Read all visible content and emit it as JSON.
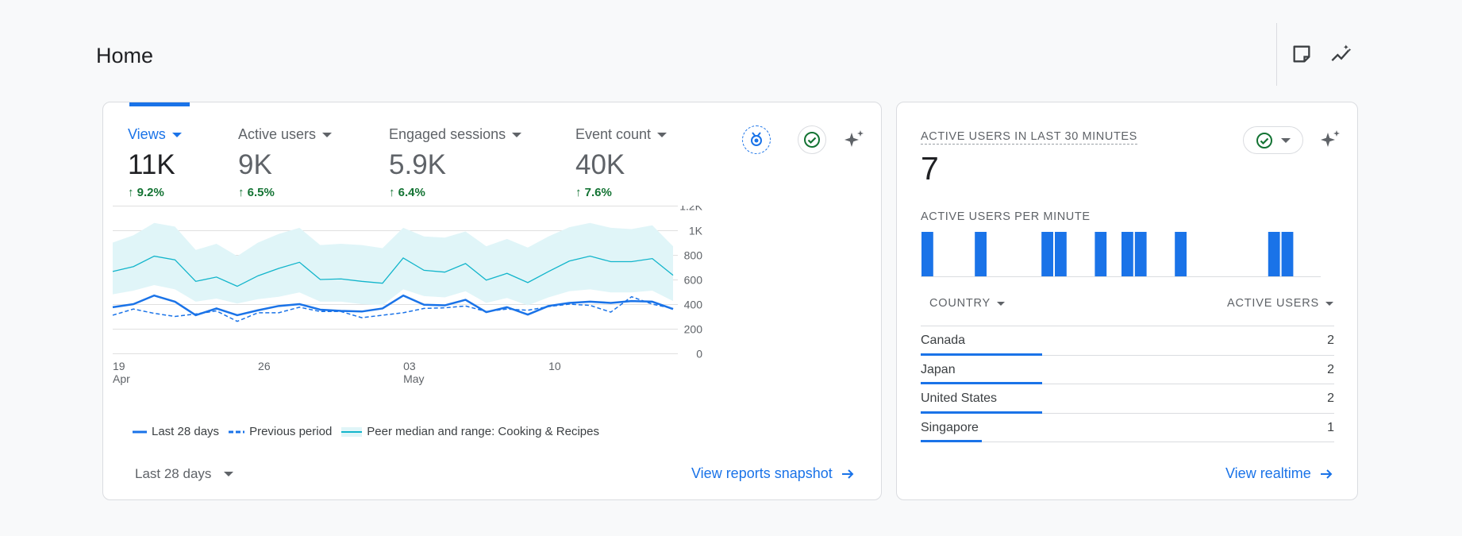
{
  "page": {
    "title": "Home"
  },
  "header_icons": [
    "sticky-note-icon",
    "insights-icon"
  ],
  "overview": {
    "metrics": [
      {
        "label": "Views",
        "value": "11K",
        "change": "9.2%",
        "active": true
      },
      {
        "label": "Active users",
        "value": "9K",
        "change": "6.5%",
        "active": false
      },
      {
        "label": "Engaged sessions",
        "value": "5.9K",
        "change": "6.4%",
        "active": false
      },
      {
        "label": "Event count",
        "value": "40K",
        "change": "7.6%",
        "active": false
      }
    ],
    "icons": [
      "ribbon-award-icon",
      "check-circle-icon",
      "sparkle-icon"
    ],
    "legend": {
      "current": "Last 28 days",
      "previous": "Previous period",
      "peer": "Peer median and range: Cooking & Recipes"
    },
    "date_range": "Last 28 days",
    "link": "View reports snapshot"
  },
  "chart_data": {
    "type": "line",
    "x_ticks": [
      {
        "day": "19",
        "month": "Apr"
      },
      {
        "day": "26",
        "month": ""
      },
      {
        "day": "03",
        "month": "May"
      },
      {
        "day": "10",
        "month": ""
      }
    ],
    "y_ticks": [
      "1.2K",
      "1K",
      "800",
      "600",
      "400",
      "200",
      "0"
    ],
    "ylim": [
      0,
      1200
    ],
    "series": [
      {
        "name": "Last 28 days",
        "values": [
          375,
          400,
          470,
          420,
          310,
          365,
          310,
          350,
          385,
          400,
          355,
          345,
          340,
          365,
          470,
          395,
          390,
          435,
          335,
          375,
          315,
          385,
          410,
          420,
          410,
          425,
          420,
          360
        ],
        "color": "#1a73e8"
      },
      {
        "name": "Previous period",
        "values": [
          310,
          360,
          325,
          300,
          320,
          345,
          260,
          330,
          330,
          375,
          340,
          340,
          290,
          310,
          330,
          365,
          370,
          385,
          340,
          360,
          350,
          380,
          400,
          390,
          335,
          460,
          400,
          365
        ],
        "color": "#1a73e8"
      },
      {
        "name": "Peer median",
        "values": [
          665,
          705,
          790,
          760,
          585,
          620,
          545,
          630,
          690,
          740,
          600,
          605,
          585,
          570,
          775,
          675,
          660,
          730,
          595,
          650,
          575,
          665,
          750,
          790,
          745,
          745,
          770,
          635
        ],
        "color": "#12b5cb"
      },
      {
        "name": "Peer range upper",
        "values": [
          900,
          960,
          1060,
          1030,
          840,
          890,
          790,
          900,
          970,
          1020,
          880,
          890,
          880,
          855,
          1020,
          950,
          940,
          990,
          870,
          930,
          860,
          950,
          1025,
          1060,
          1020,
          1010,
          1040,
          870
        ]
      },
      {
        "name": "Peer range lower",
        "values": [
          480,
          510,
          555,
          520,
          420,
          445,
          405,
          440,
          460,
          495,
          420,
          420,
          400,
          390,
          520,
          465,
          455,
          505,
          410,
          450,
          390,
          455,
          505,
          520,
          495,
          495,
          510,
          425
        ]
      }
    ]
  },
  "realtime": {
    "label": "ACTIVE USERS IN LAST 30 MINUTES",
    "value": "7",
    "per_minute_label": "ACTIVE USERS PER MINUTE",
    "per_minute": [
      1,
      0,
      0,
      0,
      1,
      0,
      0,
      0,
      0,
      1,
      1,
      0,
      0,
      1,
      0,
      1,
      1,
      0,
      0,
      1,
      0,
      0,
      0,
      0,
      0,
      0,
      1,
      1,
      0,
      0
    ],
    "col_country": "COUNTRY",
    "col_users": "ACTIVE USERS",
    "rows": [
      {
        "country": "Canada",
        "users": "2",
        "share": 1.0
      },
      {
        "country": "Japan",
        "users": "2",
        "share": 1.0
      },
      {
        "country": "United States",
        "users": "2",
        "share": 1.0
      },
      {
        "country": "Singapore",
        "users": "1",
        "share": 0.5
      }
    ],
    "link": "View realtime"
  }
}
